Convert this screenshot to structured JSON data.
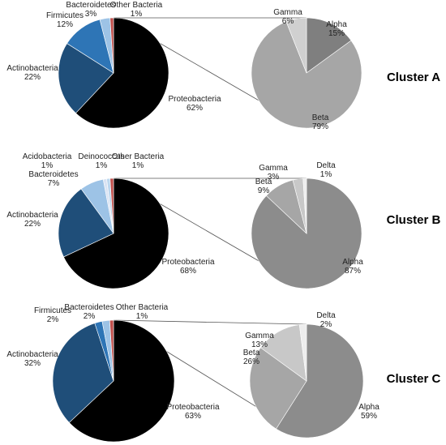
{
  "chart_data": [
    {
      "type": "pie-of-pie",
      "title": "Cluster A",
      "categories": [
        "Proteobacteria",
        "Actinobacteria",
        "Firmicutes",
        "Bacteroidetes",
        "Other Bacteria"
      ],
      "values": [
        62,
        22,
        12,
        3,
        1
      ],
      "value_labels": [
        "62%",
        "22%",
        "12%",
        "3%",
        "1%"
      ],
      "colors": [
        "#000000",
        "#1f4e79",
        "#2e75b6",
        "#9dc3e6",
        "#c0504d"
      ],
      "detail_categories": [
        "Alpha",
        "Beta",
        "Gamma"
      ],
      "detail_values": [
        15,
        79,
        6
      ],
      "detail_value_labels": [
        "15%",
        "79%",
        "6%"
      ],
      "detail_colors": [
        "#7f7f7f",
        "#a6a6a6",
        "#d0d0d0"
      ]
    },
    {
      "type": "pie-of-pie",
      "title": "Cluster B",
      "categories": [
        "Proteobacteria",
        "Actinobacteria",
        "Bacteroidetes",
        "Acidobacteria",
        "Deinococcus",
        "Other Bacteria"
      ],
      "values": [
        68,
        22,
        7,
        1,
        1,
        1
      ],
      "value_labels": [
        "68%",
        "22%",
        "7%",
        "1%",
        "1%",
        "1%"
      ],
      "colors": [
        "#000000",
        "#1f4e79",
        "#9dc3e6",
        "#dae3f3",
        "#bdd7ee",
        "#c0504d"
      ],
      "detail_categories": [
        "Alpha",
        "Beta",
        "Gamma",
        "Delta"
      ],
      "detail_values": [
        87,
        9,
        3,
        1
      ],
      "detail_value_labels": [
        "87%",
        "9%",
        "3%",
        "1%"
      ],
      "detail_colors": [
        "#8c8c8c",
        "#a6a6a6",
        "#c8c8c8",
        "#ededed"
      ]
    },
    {
      "type": "pie-of-pie",
      "title": "Cluster C",
      "categories": [
        "Proteobacteria",
        "Actinobacteria",
        "Firmicutes",
        "Bacteroidetes",
        "Other Bacteria"
      ],
      "values": [
        63,
        32,
        2,
        2,
        1
      ],
      "value_labels": [
        "63%",
        "32%",
        "2%",
        "2%",
        "1%"
      ],
      "colors": [
        "#000000",
        "#1f4e79",
        "#2e75b6",
        "#9dc3e6",
        "#c0504d"
      ],
      "detail_categories": [
        "Alpha",
        "Beta",
        "Gamma",
        "Delta"
      ],
      "detail_values": [
        59,
        26,
        13,
        2
      ],
      "detail_value_labels": [
        "59%",
        "26%",
        "13%",
        "2%"
      ],
      "detail_colors": [
        "#8c8c8c",
        "#a6a6a6",
        "#c8c8c8",
        "#ededed"
      ]
    }
  ]
}
